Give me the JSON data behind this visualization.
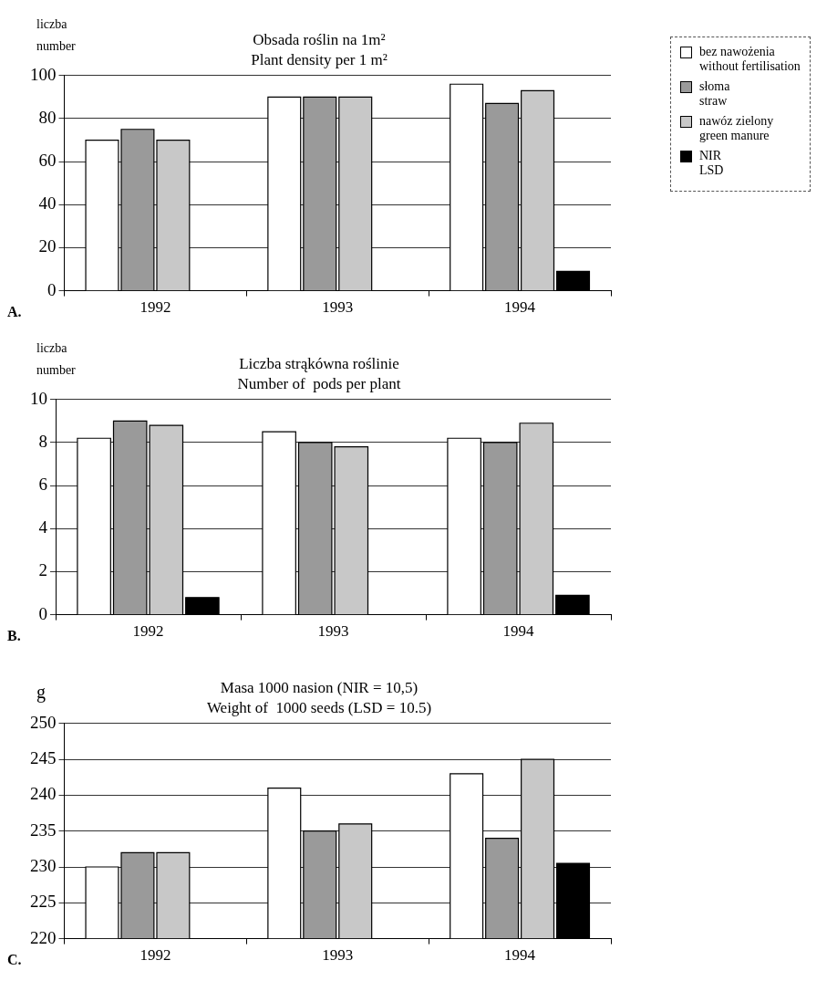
{
  "chart_data": [
    {
      "type": "bar",
      "title": "Obsada roślin na 1m²",
      "subtitle": "Plant density per 1 m²",
      "ylabel": "liczba\nnumber",
      "annotations": [
        "A."
      ],
      "categories": [
        "1992",
        "1993",
        "1994"
      ],
      "series": [
        {
          "name": "bez nawożenia\nwithout fertilisation",
          "color": "#ffffff",
          "values": [
            70,
            90,
            96
          ]
        },
        {
          "name": "słoma\nstraw",
          "color": "#9a9a9a",
          "values": [
            75,
            90,
            87
          ]
        },
        {
          "name": "nawóz zielony\ngreen manure",
          "color": "#c8c8c8",
          "values": [
            70,
            90,
            93
          ]
        },
        {
          "name": "NIR\nLSD",
          "color": "#000000",
          "values": [
            null,
            null,
            9
          ]
        }
      ],
      "ylim": [
        0,
        100
      ],
      "yticks": [
        0,
        20,
        40,
        60,
        80,
        100
      ],
      "grid": "y",
      "legend": "right"
    },
    {
      "type": "bar",
      "title": "Liczba strąkówna roślinie",
      "subtitle": "Number of  pods per plant",
      "ylabel": "liczba\nnumber",
      "annotations": [
        "B."
      ],
      "categories": [
        "1992",
        "1993",
        "1994"
      ],
      "series": [
        {
          "color": "#ffffff",
          "values": [
            8.2,
            8.5,
            8.2
          ]
        },
        {
          "color": "#9a9a9a",
          "values": [
            9.0,
            8.0,
            8.0
          ]
        },
        {
          "color": "#c8c8c8",
          "values": [
            8.8,
            7.8,
            8.9
          ]
        },
        {
          "color": "#000000",
          "values": [
            0.8,
            null,
            0.9
          ]
        }
      ],
      "ylim": [
        0,
        10
      ],
      "yticks": [
        0,
        2,
        4,
        6,
        8,
        10
      ],
      "grid": "y",
      "legend": false
    },
    {
      "type": "bar",
      "title": "Masa 1000 nasion (NIR = 10,5)",
      "subtitle": "Weight of  1000 seeds (LSD = 10.5)",
      "ylabel": "g",
      "annotations": [
        "C."
      ],
      "categories": [
        "1992",
        "1993",
        "1994"
      ],
      "series": [
        {
          "color": "#ffffff",
          "values": [
            230,
            241,
            243
          ]
        },
        {
          "color": "#9a9a9a",
          "values": [
            232,
            235,
            234
          ]
        },
        {
          "color": "#c8c8c8",
          "values": [
            232,
            236,
            245
          ]
        },
        {
          "color": "#000000",
          "values": [
            null,
            null,
            230.5
          ]
        }
      ],
      "ylim": [
        220,
        250
      ],
      "yticks": [
        220,
        225,
        230,
        235,
        240,
        245,
        250
      ],
      "grid": "y",
      "legend": false
    }
  ]
}
